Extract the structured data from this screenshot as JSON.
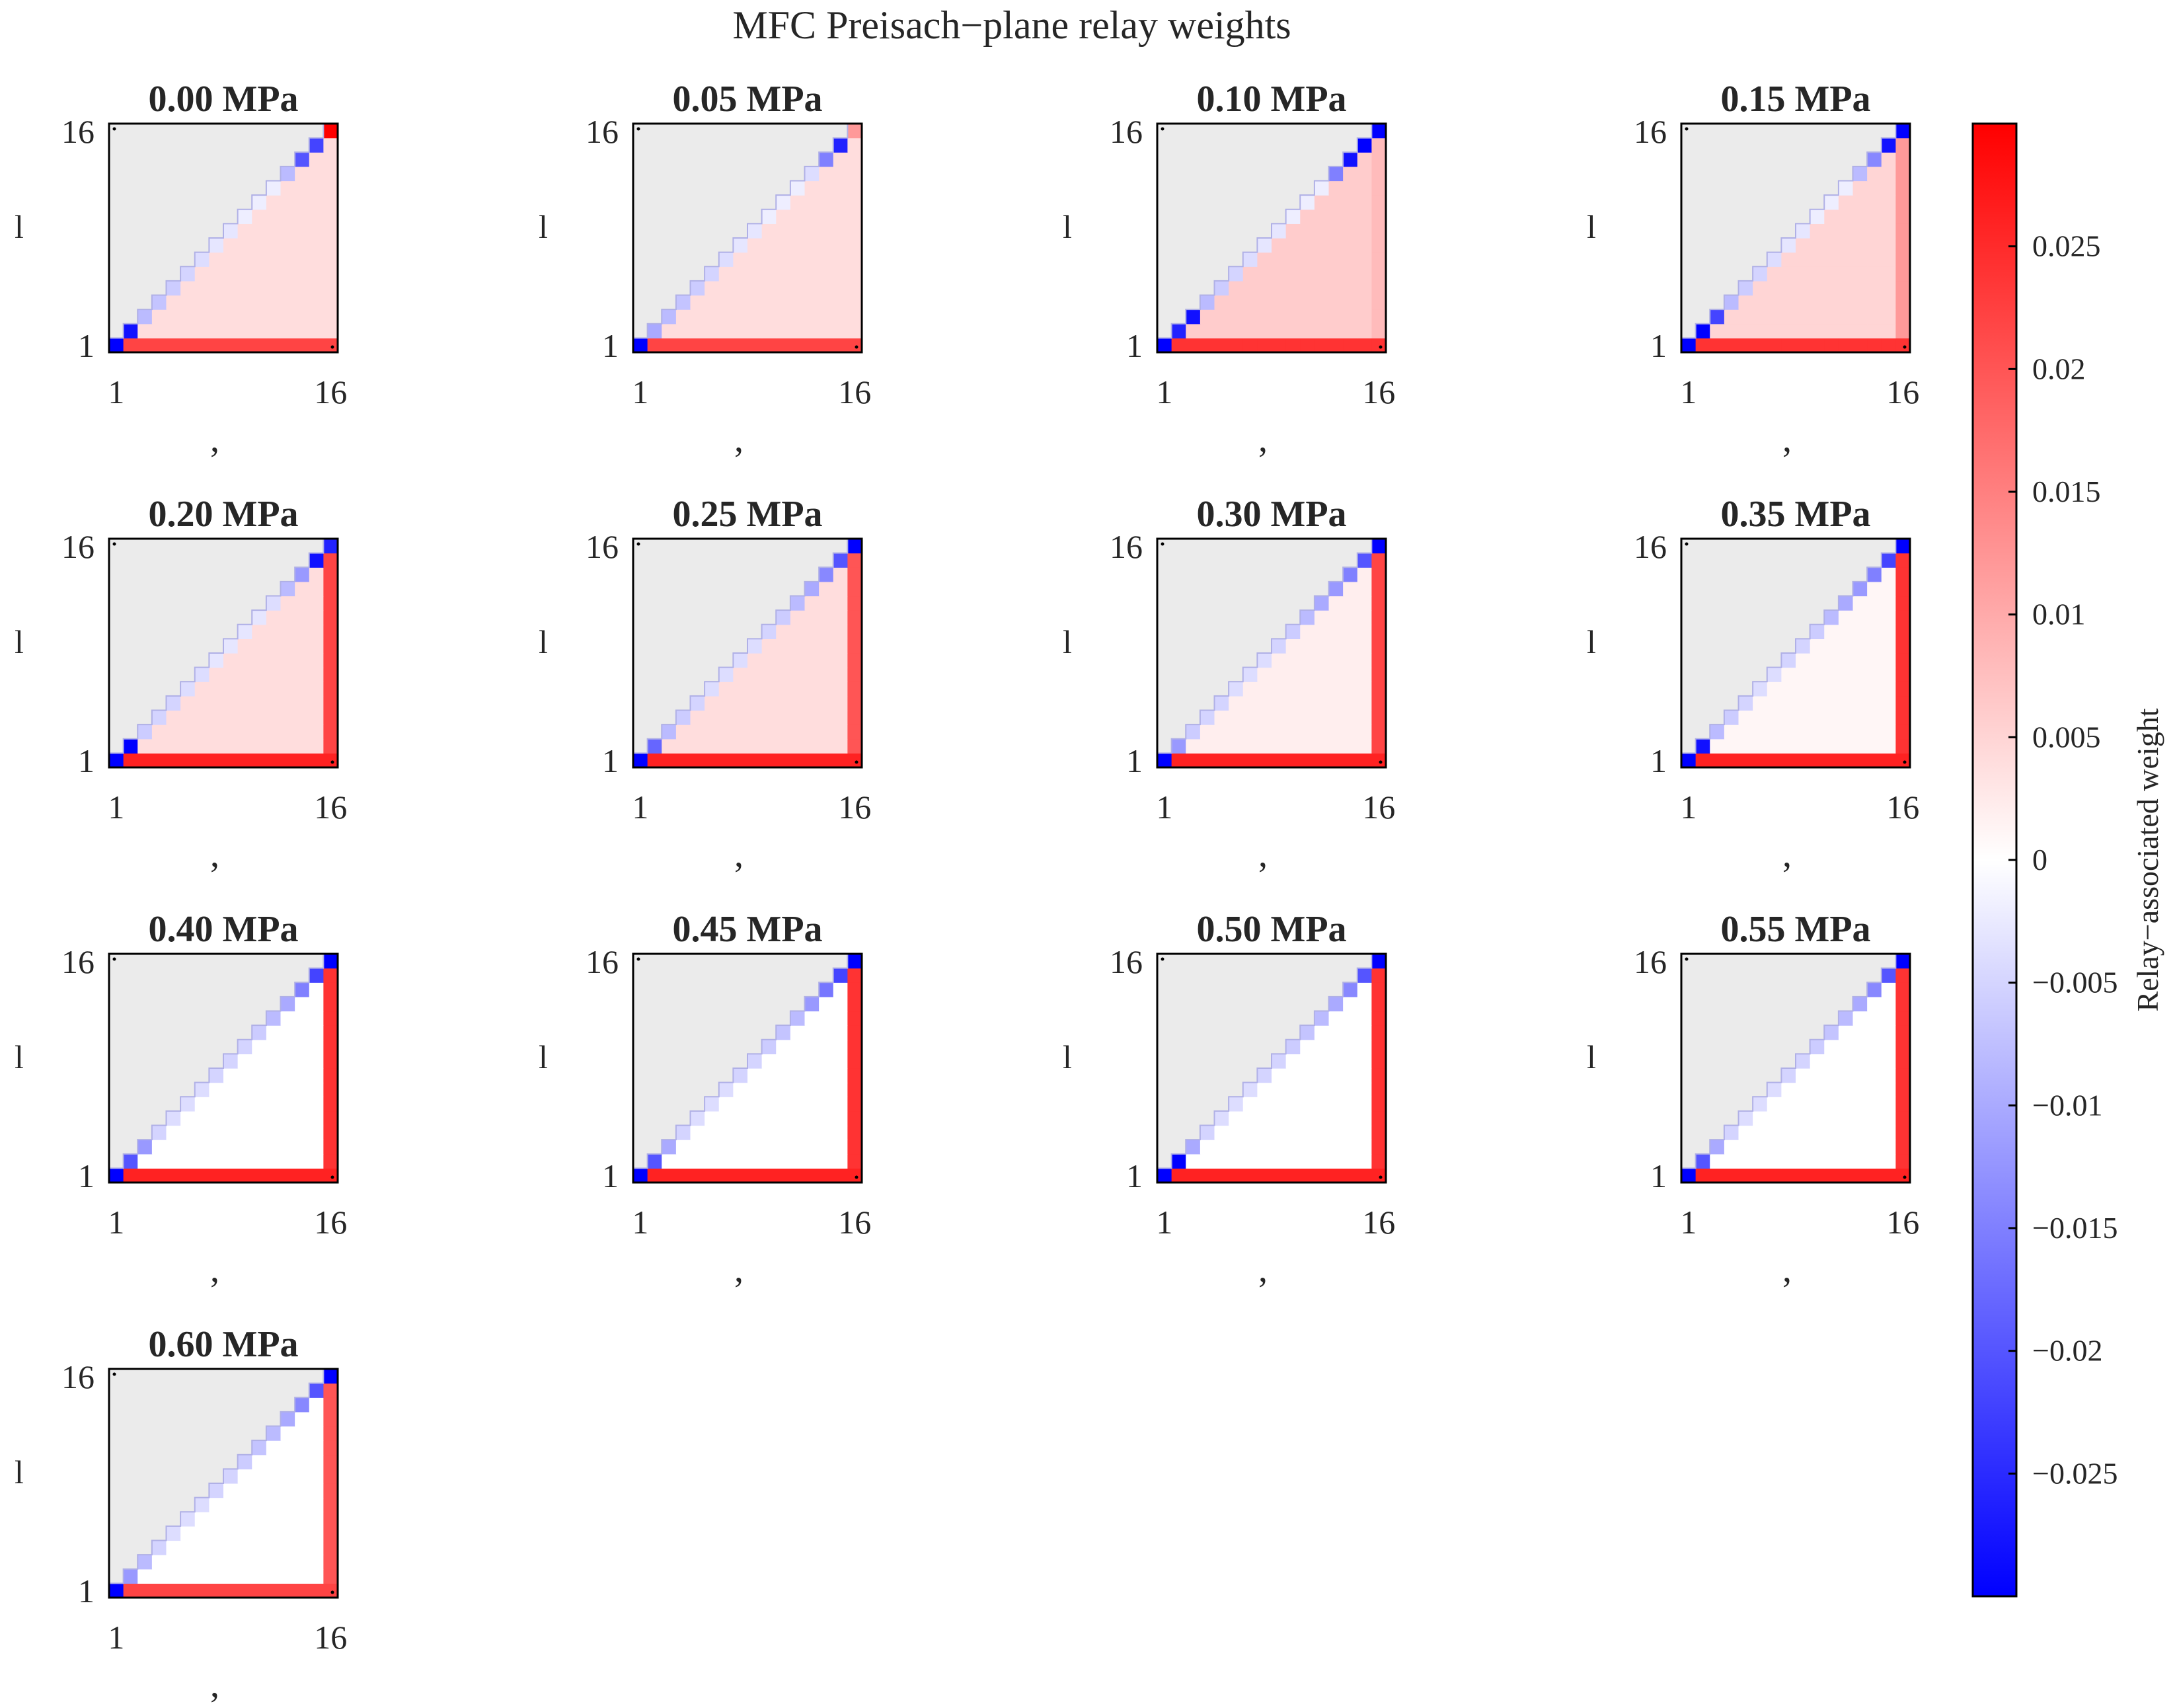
{
  "figure": {
    "title": "MFC Preisach−plane relay weights",
    "colorbar_label": "Relay−associated weight"
  },
  "chart_data": {
    "type": "heatmap",
    "grid_size": 16,
    "panel_xlabel": ",",
    "panel_ylabel": "l",
    "x_ticks": [
      "1",
      "16"
    ],
    "y_ticks": [
      "1",
      "16"
    ],
    "color_scale": {
      "min": -0.03,
      "max": 0.03,
      "low_color": "#0000ff",
      "mid_color": "#ffffff",
      "high_color": "#ff0000",
      "mask_color": "#ebebeb",
      "ticks": [
        "0.025",
        "0.02",
        "0.015",
        "0.01",
        "0.005",
        "0",
        "−0.005",
        "−0.01",
        "−0.015",
        "−0.02",
        "−0.025"
      ],
      "tick_values": [
        0.025,
        0.02,
        0.015,
        0.01,
        0.005,
        0,
        -0.005,
        -0.01,
        -0.015,
        -0.02,
        -0.025
      ]
    },
    "panels": [
      {
        "title": "0.00 MPa",
        "diag": [
          -0.03,
          -0.028,
          -0.008,
          -0.007,
          -0.006,
          -0.005,
          -0.004,
          -0.003,
          -0.003,
          -0.002,
          -0.002,
          -0.002,
          -0.008,
          -0.02,
          -0.022,
          0.03
        ],
        "bottom_row": 0.022,
        "right_col": 0.004,
        "interior": 0.004
      },
      {
        "title": "0.05 MPa",
        "diag": [
          -0.03,
          -0.01,
          -0.008,
          -0.007,
          -0.006,
          -0.005,
          -0.004,
          -0.003,
          -0.003,
          -0.002,
          -0.002,
          -0.002,
          -0.004,
          -0.015,
          -0.026,
          0.012
        ],
        "bottom_row": 0.022,
        "right_col": 0.004,
        "interior": 0.004
      },
      {
        "title": "0.10 MPa",
        "diag": [
          -0.03,
          -0.026,
          -0.028,
          -0.008,
          -0.006,
          -0.005,
          -0.004,
          -0.003,
          -0.003,
          -0.002,
          -0.002,
          -0.002,
          -0.015,
          -0.028,
          -0.03,
          -0.03
        ],
        "bottom_row": 0.024,
        "right_col": 0.008,
        "interior": 0.006
      },
      {
        "title": "0.15 MPa",
        "diag": [
          -0.03,
          -0.03,
          -0.022,
          -0.008,
          -0.006,
          -0.005,
          -0.004,
          -0.003,
          -0.003,
          -0.002,
          -0.002,
          -0.002,
          -0.008,
          -0.014,
          -0.028,
          -0.03
        ],
        "bottom_row": 0.024,
        "right_col": 0.012,
        "interior": 0.005
      },
      {
        "title": "0.20 MPa",
        "diag": [
          -0.03,
          -0.03,
          -0.006,
          -0.005,
          -0.005,
          -0.004,
          -0.004,
          -0.003,
          -0.003,
          -0.003,
          -0.003,
          -0.004,
          -0.008,
          -0.012,
          -0.028,
          -0.026
        ],
        "bottom_row": 0.026,
        "right_col": 0.022,
        "interior": 0.004
      },
      {
        "title": "0.25 MPa",
        "diag": [
          -0.03,
          -0.018,
          -0.008,
          -0.006,
          -0.005,
          -0.004,
          -0.004,
          -0.004,
          -0.004,
          -0.005,
          -0.006,
          -0.008,
          -0.01,
          -0.014,
          -0.02,
          -0.03
        ],
        "bottom_row": 0.026,
        "right_col": 0.02,
        "interior": 0.004
      },
      {
        "title": "0.30 MPa",
        "diag": [
          -0.03,
          -0.012,
          -0.006,
          -0.005,
          -0.005,
          -0.004,
          -0.004,
          -0.004,
          -0.005,
          -0.006,
          -0.008,
          -0.01,
          -0.012,
          -0.015,
          -0.02,
          -0.03
        ],
        "bottom_row": 0.026,
        "right_col": 0.022,
        "interior": 0.002
      },
      {
        "title": "0.35 MPa",
        "diag": [
          -0.03,
          -0.028,
          -0.008,
          -0.006,
          -0.005,
          -0.004,
          -0.004,
          -0.005,
          -0.005,
          -0.006,
          -0.008,
          -0.01,
          -0.012,
          -0.015,
          -0.022,
          -0.03
        ],
        "bottom_row": 0.026,
        "right_col": 0.024,
        "interior": 0.001
      },
      {
        "title": "0.40 MPa",
        "diag": [
          -0.03,
          -0.02,
          -0.012,
          -0.005,
          -0.004,
          -0.004,
          -0.004,
          -0.005,
          -0.005,
          -0.005,
          -0.006,
          -0.008,
          -0.01,
          -0.015,
          -0.022,
          -0.03
        ],
        "bottom_row": 0.026,
        "right_col": 0.024,
        "interior": 0.0
      },
      {
        "title": "0.45 MPa",
        "diag": [
          -0.03,
          -0.02,
          -0.01,
          -0.005,
          -0.004,
          -0.004,
          -0.004,
          -0.005,
          -0.005,
          -0.006,
          -0.007,
          -0.008,
          -0.012,
          -0.016,
          -0.022,
          -0.03
        ],
        "bottom_row": 0.026,
        "right_col": 0.024,
        "interior": 0.0
      },
      {
        "title": "0.50 MPa",
        "diag": [
          -0.03,
          -0.03,
          -0.01,
          -0.005,
          -0.004,
          -0.004,
          -0.004,
          -0.005,
          -0.005,
          -0.006,
          -0.007,
          -0.008,
          -0.01,
          -0.014,
          -0.02,
          -0.03
        ],
        "bottom_row": 0.026,
        "right_col": 0.024,
        "interior": 0.0
      },
      {
        "title": "0.55 MPa",
        "diag": [
          -0.03,
          -0.02,
          -0.01,
          -0.005,
          -0.004,
          -0.004,
          -0.004,
          -0.005,
          -0.005,
          -0.006,
          -0.007,
          -0.008,
          -0.01,
          -0.014,
          -0.02,
          -0.03
        ],
        "bottom_row": 0.026,
        "right_col": 0.024,
        "interior": 0.0
      },
      {
        "title": "0.60 MPa",
        "diag": [
          -0.03,
          -0.012,
          -0.008,
          -0.005,
          -0.004,
          -0.004,
          -0.004,
          -0.005,
          -0.005,
          -0.006,
          -0.007,
          -0.008,
          -0.01,
          -0.014,
          -0.02,
          -0.03
        ],
        "bottom_row": 0.022,
        "right_col": 0.02,
        "interior": 0.0
      }
    ]
  }
}
